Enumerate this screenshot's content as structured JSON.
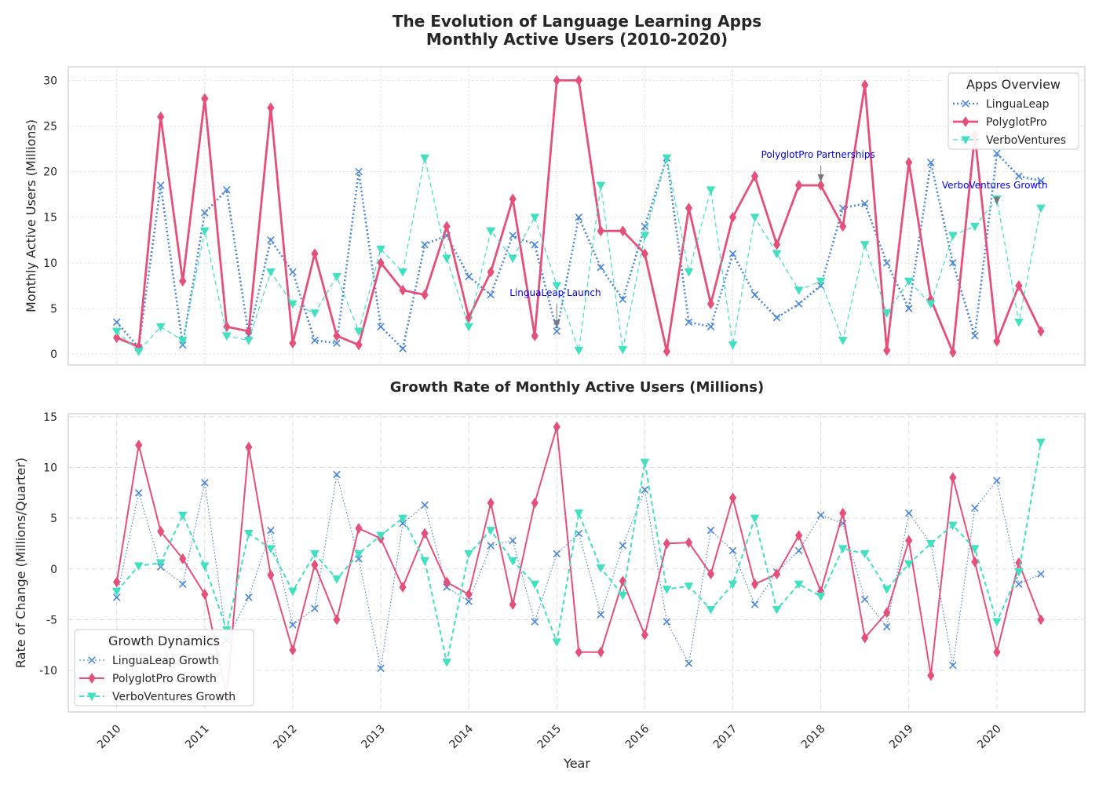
{
  "figure": {
    "title_line1": "The Evolution of Language Learning Apps",
    "title_line2": "Monthly Active Users (2010-2020)",
    "xlabel": "Year"
  },
  "colors": {
    "LinguaLeap": "#4a86d9",
    "PolyglotPro": "#e5507a",
    "VerboVentures": "#40e0c0",
    "grid": "#dddddd",
    "frame": "#cccccc",
    "annotation": "#0000ee",
    "arrow": "#777777"
  },
  "chart_data": [
    {
      "type": "line",
      "title": "",
      "xlabel": "",
      "ylabel": "Monthly Active Users (Millions)",
      "xticks": [
        "2010",
        "2011",
        "2012",
        "2013",
        "2014",
        "2015",
        "2016",
        "2017",
        "2018",
        "2019",
        "2020"
      ],
      "xlim": [
        2009.45,
        2021.0
      ],
      "ylim": [
        -1.2,
        31.5
      ],
      "yticks": [
        0,
        5,
        10,
        15,
        20,
        25,
        30
      ],
      "grid": true,
      "legend": {
        "title": "Apps Overview",
        "placement": "top-right"
      },
      "x": [
        2010.0,
        2010.25,
        2010.5,
        2010.75,
        2011.0,
        2011.25,
        2011.5,
        2011.75,
        2012.0,
        2012.25,
        2012.5,
        2012.75,
        2013.0,
        2013.25,
        2013.5,
        2013.75,
        2014.0,
        2014.25,
        2014.5,
        2014.75,
        2015.0,
        2015.25,
        2015.5,
        2015.75,
        2016.0,
        2016.25,
        2016.5,
        2016.75,
        2017.0,
        2017.25,
        2017.5,
        2017.75,
        2018.0,
        2018.25,
        2018.5,
        2018.75,
        2019.0,
        2019.25,
        2019.5,
        2019.75,
        2020.0,
        2020.25,
        2020.5
      ],
      "series": [
        {
          "name": "LinguaLeap",
          "marker": "x",
          "style": "dotted",
          "values": [
            3.5,
            0.7,
            18.5,
            1.0,
            15.5,
            18.0,
            2.0,
            12.5,
            9.0,
            1.5,
            1.2,
            20.0,
            3.0,
            0.6,
            12.0,
            13.0,
            8.5,
            6.5,
            13.0,
            12.0,
            2.5,
            15.0,
            9.5,
            6.0,
            14.0,
            21.5,
            3.5,
            3.0,
            11.0,
            6.5,
            4.0,
            5.5,
            7.5,
            16.0,
            16.5,
            10.0,
            5.0,
            21.0,
            10.0,
            2.0,
            22.0,
            19.5,
            19.0
          ]
        },
        {
          "name": "PolyglotPro",
          "marker": "diamond",
          "style": "solid",
          "values": [
            1.8,
            0.8,
            26.0,
            8.0,
            28.0,
            3.0,
            2.5,
            27.0,
            1.2,
            11.0,
            2.0,
            1.0,
            10.0,
            7.0,
            6.5,
            14.0,
            4.0,
            9.0,
            17.0,
            2.0,
            30.0,
            30.0,
            13.5,
            13.5,
            11.0,
            0.3,
            16.0,
            5.5,
            15.0,
            19.5,
            12.0,
            18.5,
            18.5,
            14.0,
            29.5,
            0.4,
            21.0,
            6.0,
            0.2,
            24.0,
            1.4,
            7.5,
            2.5
          ]
        },
        {
          "name": "VerboVentures",
          "marker": "triangle-down",
          "style": "dashed",
          "values": [
            2.5,
            0.3,
            3.0,
            1.5,
            13.5,
            2.0,
            1.5,
            9.0,
            5.5,
            4.5,
            8.5,
            2.5,
            11.5,
            9.0,
            21.5,
            10.5,
            3.0,
            13.5,
            10.5,
            15.0,
            7.5,
            0.4,
            18.5,
            0.5,
            13.0,
            21.5,
            9.0,
            18.0,
            1.0,
            15.0,
            11.0,
            7.0,
            8.0,
            1.5,
            12.0,
            4.5,
            8.0,
            5.5,
            13.0,
            14.0,
            17.0,
            3.5,
            16.0
          ]
        }
      ],
      "annotations": [
        {
          "text": "LinguaLeap Launch",
          "x": 2015.0,
          "y": 2.5
        },
        {
          "text": "PolyglotPro Partnerships",
          "x": 2018.0,
          "y": 18.5
        },
        {
          "text": "VerboVentures Growth",
          "x": 2020.0,
          "y": 16.0
        }
      ]
    },
    {
      "type": "line",
      "title": "Growth Rate of Monthly Active Users (Millions)",
      "xlabel": "Year",
      "ylabel": "Rate of Change (Millions/Quarter)",
      "xticks": [
        "2010",
        "2011",
        "2012",
        "2013",
        "2014",
        "2015",
        "2016",
        "2017",
        "2018",
        "2019",
        "2020"
      ],
      "xlim": [
        2009.45,
        2021.0
      ],
      "ylim": [
        -14.1,
        15.3
      ],
      "yticks": [
        -10,
        -5,
        0,
        5,
        10,
        15
      ],
      "grid": true,
      "legend": {
        "title": "Growth Dynamics",
        "placement": "lower-left"
      },
      "x": [
        2010.0,
        2010.25,
        2010.5,
        2010.75,
        2011.0,
        2011.25,
        2011.5,
        2011.75,
        2012.0,
        2012.25,
        2012.5,
        2012.75,
        2013.0,
        2013.25,
        2013.5,
        2013.75,
        2014.0,
        2014.25,
        2014.5,
        2014.75,
        2015.0,
        2015.25,
        2015.5,
        2015.75,
        2016.0,
        2016.25,
        2016.5,
        2016.75,
        2017.0,
        2017.25,
        2017.5,
        2017.75,
        2018.0,
        2018.25,
        2018.5,
        2018.75,
        2019.0,
        2019.25,
        2019.5,
        2019.75,
        2020.0,
        2020.25,
        2020.5
      ],
      "series": [
        {
          "name": "LinguaLeap Growth",
          "marker": "x",
          "style": "dotted",
          "values": [
            -2.8,
            7.5,
            0.2,
            -1.5,
            8.5,
            -7.0,
            -2.8,
            3.8,
            -5.5,
            -3.9,
            9.3,
            1.0,
            -9.8,
            4.5,
            6.3,
            -1.8,
            -3.2,
            2.3,
            2.8,
            -5.2,
            1.5,
            3.5,
            -4.5,
            2.3,
            7.8,
            -5.2,
            -9.3,
            3.8,
            1.8,
            -3.5,
            -0.3,
            1.8,
            5.3,
            4.5,
            -3.0,
            -5.7,
            5.5,
            2.5,
            -9.5,
            6.0,
            8.7,
            -1.5,
            -0.5
          ]
        },
        {
          "name": "PolyglotPro Growth",
          "marker": "diamond",
          "style": "solid",
          "values": [
            -1.3,
            12.2,
            3.7,
            1.0,
            -2.5,
            -12.5,
            12.0,
            -0.6,
            -8.0,
            0.4,
            -5.0,
            4.0,
            3.0,
            -1.8,
            3.5,
            -1.3,
            -2.5,
            6.5,
            -3.5,
            6.5,
            14.0,
            -8.2,
            -8.2,
            -1.2,
            -6.5,
            2.5,
            2.6,
            -0.5,
            7.0,
            -1.5,
            -0.5,
            3.3,
            -2.2,
            5.5,
            -6.8,
            -4.3,
            2.8,
            -10.5,
            9.0,
            0.7,
            -8.2,
            0.6,
            -5.0
          ]
        },
        {
          "name": "VerboVentures Growth",
          "marker": "triangle-down",
          "style": "dashed",
          "values": [
            -2.2,
            0.3,
            0.6,
            5.3,
            0.3,
            -6.0,
            3.5,
            2.0,
            -2.2,
            1.5,
            -1.0,
            1.5,
            3.3,
            5.0,
            0.8,
            -9.2,
            1.5,
            3.8,
            0.8,
            -1.5,
            -7.2,
            5.5,
            0.1,
            -2.6,
            10.5,
            -2.0,
            -1.7,
            -4.0,
            -1.5,
            5.0,
            -4.0,
            -1.5,
            -2.7,
            2.0,
            1.5,
            -2.0,
            0.5,
            2.5,
            4.3,
            2.0,
            -5.2,
            -0.3,
            12.5
          ]
        }
      ]
    }
  ]
}
